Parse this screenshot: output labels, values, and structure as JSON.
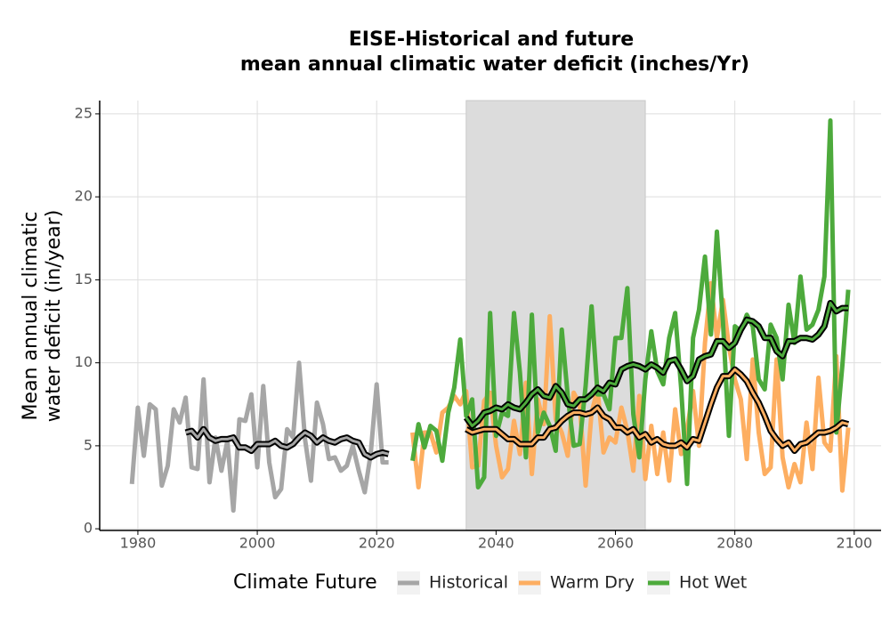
{
  "chart_data": {
    "type": "line",
    "title": [
      "EISE-Historical and future",
      "mean annual climatic water deficit (inches/Yr)"
    ],
    "ylabel": [
      "Mean annual climatic",
      "water deficit (in/year)"
    ],
    "legend_title": "Climate Future",
    "legend_position": "bottom",
    "grid": true,
    "xlim": [
      1973.6,
      2104.5
    ],
    "ylim": [
      -0.1,
      25.8
    ],
    "xticks": [
      1980,
      2000,
      2020,
      2040,
      2060,
      2080,
      2100
    ],
    "yticks": [
      0,
      5,
      10,
      15,
      20,
      25
    ],
    "shaded_region": [
      2035,
      2065
    ],
    "shade_color": "#dcdcdc",
    "smooth_color": "#000000",
    "series": [
      {
        "name": "Historical",
        "color": "#a6a6a6",
        "x": [
          1979,
          1980,
          1981,
          1982,
          1983,
          1984,
          1985,
          1986,
          1987,
          1988,
          1989,
          1990,
          1991,
          1992,
          1993,
          1994,
          1995,
          1996,
          1997,
          1998,
          1999,
          2000,
          2001,
          2002,
          2003,
          2004,
          2005,
          2006,
          2007,
          2008,
          2009,
          2010,
          2011,
          2012,
          2013,
          2014,
          2015,
          2016,
          2017,
          2018,
          2019,
          2020,
          2021,
          2022
        ],
        "values": [
          2.7,
          7.3,
          4.4,
          7.5,
          7.2,
          2.6,
          3.8,
          7.2,
          6.4,
          7.9,
          3.7,
          3.6,
          9.0,
          2.8,
          5.5,
          3.5,
          5.3,
          1.1,
          6.6,
          6.5,
          8.1,
          3.7,
          8.6,
          4.0,
          1.9,
          2.4,
          6.0,
          5.5,
          10.0,
          5.4,
          2.9,
          7.6,
          6.3,
          4.2,
          4.3,
          3.5,
          3.8,
          5.0,
          3.5,
          2.2,
          4.5,
          8.7,
          4.0,
          4.0
        ],
        "smooth_x": [
          1988,
          1989,
          1990,
          1991,
          1992,
          1993,
          1994,
          1995,
          1996,
          1997,
          1998,
          1999,
          2000,
          2001,
          2002,
          2003,
          2004,
          2005,
          2006,
          2007,
          2008,
          2009,
          2010,
          2011,
          2012,
          2013,
          2014,
          2015,
          2016,
          2017,
          2018,
          2019,
          2020,
          2021,
          2022
        ],
        "smoothed": [
          5.8,
          5.9,
          5.5,
          6.0,
          5.5,
          5.3,
          5.4,
          5.4,
          5.5,
          4.9,
          4.9,
          4.7,
          5.1,
          5.1,
          5.1,
          5.3,
          5.0,
          4.9,
          5.1,
          5.5,
          5.8,
          5.6,
          5.2,
          5.5,
          5.3,
          5.2,
          5.4,
          5.5,
          5.3,
          5.2,
          4.5,
          4.3,
          4.5,
          4.6,
          4.5
        ]
      },
      {
        "name": "Warm Dry",
        "color": "#fdae61",
        "x": [
          2026,
          2027,
          2028,
          2029,
          2030,
          2031,
          2032,
          2033,
          2034,
          2035,
          2036,
          2037,
          2038,
          2039,
          2040,
          2041,
          2042,
          2043,
          2044,
          2045,
          2046,
          2047,
          2048,
          2049,
          2050,
          2051,
          2052,
          2053,
          2054,
          2055,
          2056,
          2057,
          2058,
          2059,
          2060,
          2061,
          2062,
          2063,
          2064,
          2065,
          2066,
          2067,
          2068,
          2069,
          2070,
          2071,
          2072,
          2073,
          2074,
          2075,
          2076,
          2077,
          2078,
          2079,
          2080,
          2081,
          2082,
          2083,
          2084,
          2085,
          2086,
          2087,
          2088,
          2089,
          2090,
          2091,
          2092,
          2093,
          2094,
          2095,
          2096,
          2097,
          2098,
          2099
        ],
        "values": [
          5.8,
          2.5,
          5.8,
          5.8,
          4.6,
          7.0,
          7.3,
          8.0,
          7.5,
          8.3,
          3.7,
          3.8,
          7.7,
          8.2,
          5.0,
          3.1,
          3.6,
          6.5,
          4.5,
          8.8,
          3.3,
          7.8,
          6.3,
          12.8,
          6.6,
          5.8,
          4.4,
          8.2,
          7.5,
          2.6,
          7.0,
          8.4,
          4.6,
          5.5,
          5.2,
          7.3,
          5.9,
          3.5,
          8.0,
          3.0,
          6.2,
          3.3,
          5.8,
          2.9,
          7.2,
          4.5,
          6.0,
          8.3,
          5.0,
          11.2,
          14.8,
          11.5,
          13.8,
          11.0,
          9.0,
          7.8,
          4.2,
          10.2,
          5.8,
          3.3,
          3.7,
          10.2,
          4.3,
          2.5,
          3.9,
          2.8,
          6.4,
          3.6,
          9.1,
          5.2,
          4.7,
          10.4,
          2.3,
          6.1
        ],
        "smooth_x": [
          2035,
          2036,
          2037,
          2038,
          2039,
          2040,
          2041,
          2042,
          2043,
          2044,
          2045,
          2046,
          2047,
          2048,
          2049,
          2050,
          2051,
          2052,
          2053,
          2054,
          2055,
          2056,
          2057,
          2058,
          2059,
          2060,
          2061,
          2062,
          2063,
          2064,
          2065,
          2066,
          2067,
          2068,
          2069,
          2070,
          2071,
          2072,
          2073,
          2074,
          2075,
          2076,
          2077,
          2078,
          2079,
          2080,
          2081,
          2082,
          2083,
          2084,
          2085,
          2086,
          2087,
          2088,
          2089,
          2090,
          2091,
          2092,
          2093,
          2094,
          2095,
          2096,
          2097,
          2098,
          2099
        ],
        "smoothed": [
          6.0,
          5.8,
          5.9,
          6.0,
          6.0,
          6.0,
          5.7,
          5.4,
          5.4,
          5.1,
          5.1,
          5.1,
          5.5,
          5.5,
          6.0,
          6.1,
          6.5,
          6.8,
          7.0,
          7.0,
          6.9,
          7.0,
          7.3,
          6.8,
          6.6,
          6.1,
          6.1,
          5.8,
          6.0,
          5.5,
          5.7,
          5.2,
          5.4,
          5.1,
          5.0,
          5.0,
          5.2,
          4.9,
          5.4,
          5.3,
          6.4,
          7.5,
          8.5,
          9.2,
          9.2,
          9.6,
          9.3,
          8.9,
          8.2,
          7.6,
          6.8,
          5.9,
          5.4,
          5.0,
          5.2,
          4.7,
          5.1,
          5.2,
          5.5,
          5.8,
          5.8,
          5.9,
          6.1,
          6.4,
          6.3
        ]
      },
      {
        "name": "Hot Wet",
        "color": "#4daa3c",
        "x": [
          2026,
          2027,
          2028,
          2029,
          2030,
          2031,
          2032,
          2033,
          2034,
          2035,
          2036,
          2037,
          2038,
          2039,
          2040,
          2041,
          2042,
          2043,
          2044,
          2045,
          2046,
          2047,
          2048,
          2049,
          2050,
          2051,
          2052,
          2053,
          2054,
          2055,
          2056,
          2057,
          2058,
          2059,
          2060,
          2061,
          2062,
          2063,
          2064,
          2065,
          2066,
          2067,
          2068,
          2069,
          2070,
          2071,
          2072,
          2073,
          2074,
          2075,
          2076,
          2077,
          2078,
          2079,
          2080,
          2081,
          2082,
          2083,
          2084,
          2085,
          2086,
          2087,
          2088,
          2089,
          2090,
          2091,
          2092,
          2093,
          2094,
          2095,
          2096,
          2097,
          2098,
          2099
        ],
        "values": [
          4.1,
          6.3,
          4.9,
          6.2,
          5.9,
          4.1,
          7.0,
          8.5,
          11.4,
          6.8,
          7.8,
          2.5,
          3.1,
          13.0,
          5.6,
          7.0,
          6.8,
          13.0,
          9.4,
          4.3,
          12.9,
          5.8,
          7.0,
          6.2,
          4.7,
          12.0,
          8.0,
          5.0,
          5.1,
          8.6,
          13.4,
          8.1,
          8.1,
          7.2,
          11.5,
          11.5,
          14.5,
          6.9,
          4.3,
          9.0,
          11.9,
          9.5,
          8.7,
          11.5,
          13.0,
          8.5,
          2.7,
          11.5,
          13.2,
          16.4,
          11.7,
          17.9,
          12.5,
          5.6,
          12.2,
          11.9,
          12.9,
          12.2,
          9.0,
          8.4,
          12.3,
          11.5,
          9.0,
          13.5,
          11.2,
          15.2,
          12.0,
          12.3,
          13.2,
          15.2,
          24.6,
          5.8,
          9.8,
          14.4
        ],
        "smooth_x": [
          2035,
          2036,
          2037,
          2038,
          2039,
          2040,
          2041,
          2042,
          2043,
          2044,
          2045,
          2046,
          2047,
          2048,
          2049,
          2050,
          2051,
          2052,
          2053,
          2054,
          2055,
          2056,
          2057,
          2058,
          2059,
          2060,
          2061,
          2062,
          2063,
          2064,
          2065,
          2066,
          2067,
          2068,
          2069,
          2070,
          2071,
          2072,
          2073,
          2074,
          2075,
          2076,
          2077,
          2078,
          2079,
          2080,
          2081,
          2082,
          2083,
          2084,
          2085,
          2086,
          2087,
          2088,
          2089,
          2090,
          2091,
          2092,
          2093,
          2094,
          2095,
          2096,
          2097,
          2098,
          2099
        ],
        "smoothed": [
          6.7,
          6.2,
          6.5,
          7.0,
          7.1,
          7.3,
          7.2,
          7.5,
          7.3,
          7.2,
          7.6,
          8.1,
          8.4,
          8.0,
          7.9,
          8.6,
          8.2,
          7.5,
          7.4,
          7.8,
          7.8,
          8.1,
          8.5,
          8.3,
          8.8,
          8.7,
          9.6,
          9.8,
          9.9,
          9.8,
          9.6,
          9.9,
          9.7,
          9.4,
          10.1,
          10.2,
          9.6,
          8.9,
          9.2,
          10.2,
          10.4,
          10.5,
          11.3,
          11.3,
          10.9,
          11.2,
          12.0,
          12.6,
          12.5,
          12.2,
          11.5,
          11.5,
          10.7,
          10.4,
          11.3,
          11.3,
          11.5,
          11.5,
          11.4,
          11.7,
          12.2,
          13.6,
          13.1,
          13.3,
          13.3
        ]
      }
    ]
  }
}
